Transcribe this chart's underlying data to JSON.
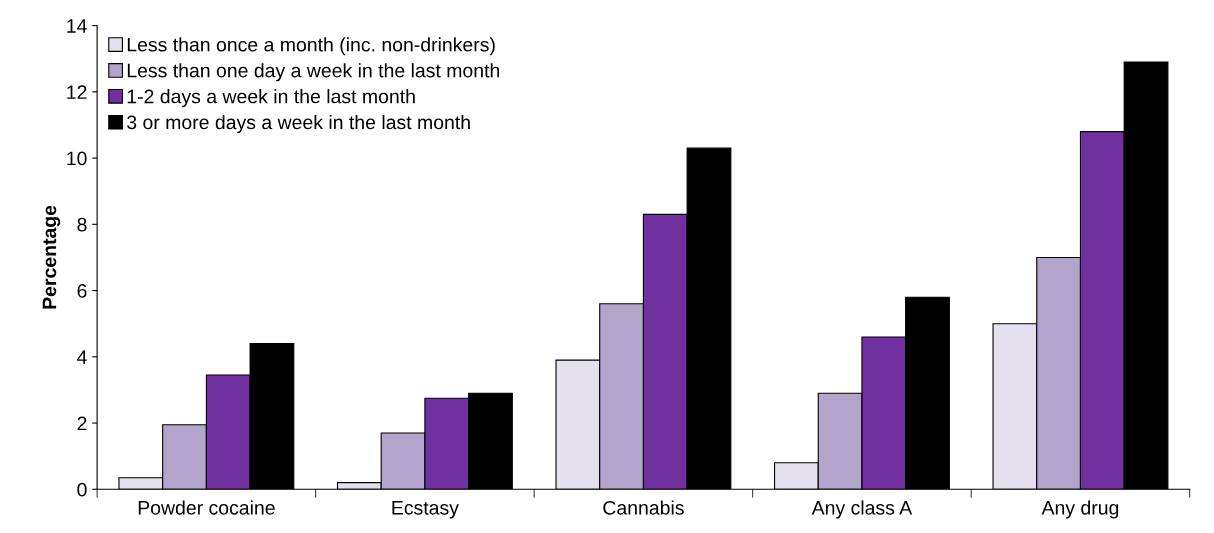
{
  "chart_data": {
    "type": "bar",
    "ylabel": "Percentage",
    "categories": [
      "Powder cocaine",
      "Ecstasy",
      "Cannabis",
      "Any class A",
      "Any drug"
    ],
    "series": [
      {
        "name": "Less than once a month (inc. non-drinkers)",
        "color": "#e4e0ee",
        "values": [
          0.35,
          0.2,
          3.9,
          0.8,
          5.0
        ]
      },
      {
        "name": "Less than one day a week in the last month",
        "color": "#b3a4cc",
        "values": [
          1.95,
          1.7,
          5.6,
          2.9,
          7.0
        ]
      },
      {
        "name": "1-2 days a week in the last month",
        "color": "#7030a0",
        "values": [
          3.45,
          2.75,
          8.3,
          4.6,
          10.8
        ]
      },
      {
        "name": "3 or more days a week in the last month",
        "color": "#000000",
        "values": [
          4.4,
          2.9,
          10.3,
          5.8,
          12.9
        ]
      }
    ],
    "ylim": [
      0,
      14
    ],
    "yticks": [
      0,
      2,
      4,
      6,
      8,
      10,
      12,
      14
    ],
    "grid": false,
    "legend": "top left"
  }
}
